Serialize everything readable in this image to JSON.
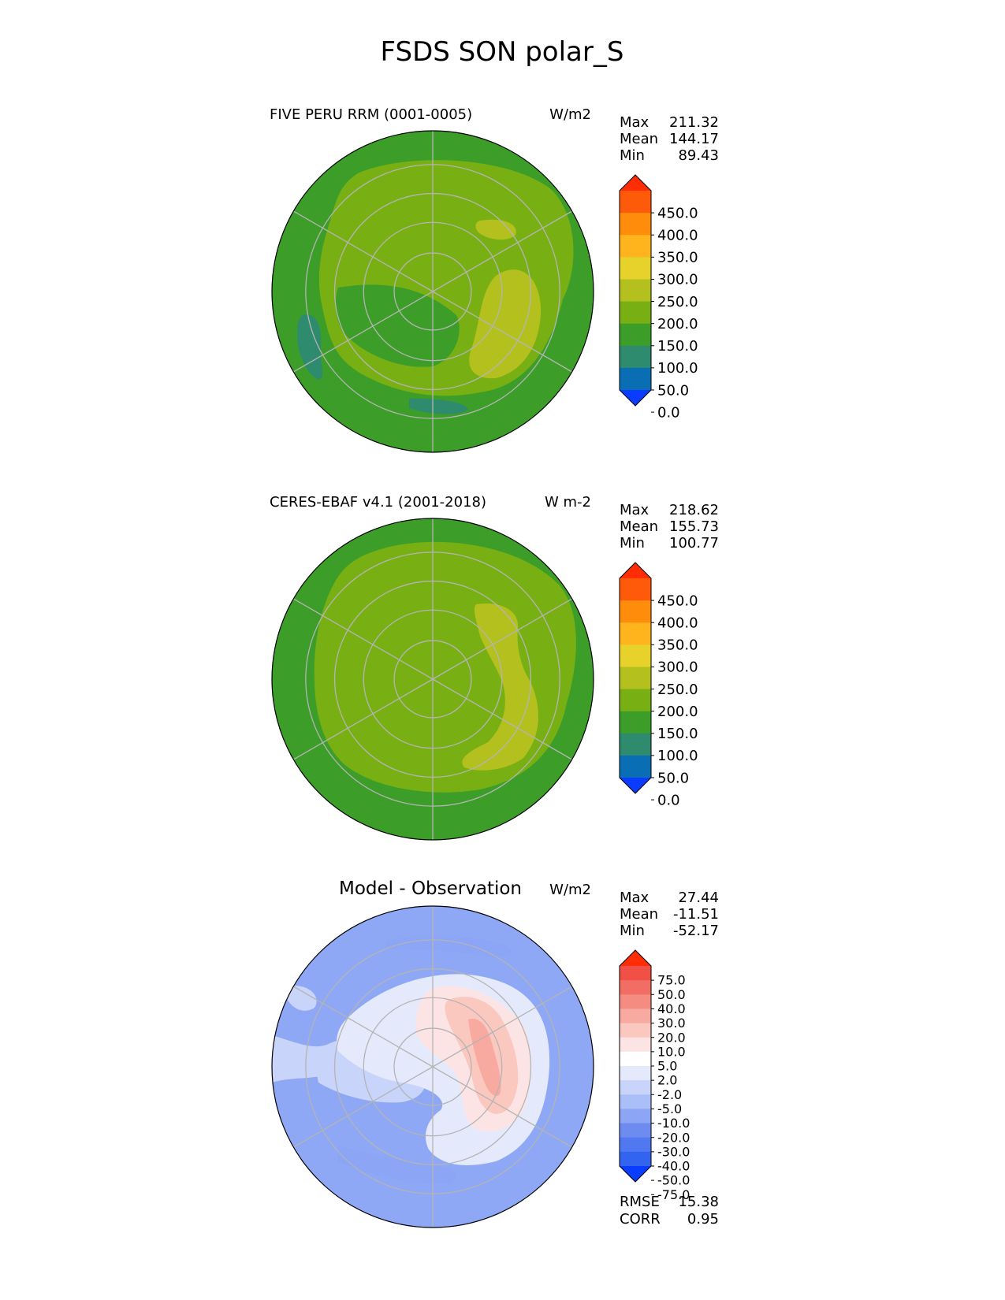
{
  "title": "FSDS SON polar_S",
  "colors": {
    "abs_levels": [
      "#0a3cff",
      "#0a6eb4",
      "#2e8b6e",
      "#3c9e28",
      "#78b014",
      "#b4c01e",
      "#e6d22a",
      "#ffb41e",
      "#ff8c0a",
      "#ff5a0a",
      "#ff2d05"
    ],
    "diff_levels": [
      "#0a3cff",
      "#3264f0",
      "#5078f0",
      "#6e8cf0",
      "#8ca5f5",
      "#aabef8",
      "#c8d4fa",
      "#e4eafc",
      "#ffffff",
      "#fce4e4",
      "#fbc8c0",
      "#f8aaa0",
      "#f58c82",
      "#f26e64",
      "#f05046",
      "#ff2d05"
    ],
    "ocean_abs": "#3c9e28",
    "ocean_diff": "#8fa8f5",
    "grid": "#b4b4b4",
    "coast": "#000000"
  },
  "panels": [
    {
      "id": "test",
      "left_title": "FIVE PERU RRM (0001-0005)",
      "units": "W/m2",
      "stats": {
        "max_label": "Max",
        "max": "211.32",
        "mean_label": "Mean",
        "mean": "144.17",
        "min_label": "Min",
        "min": "89.43"
      },
      "colorbar_ticks": [
        "450.0",
        "400.0",
        "350.0",
        "300.0",
        "250.0",
        "200.0",
        "150.0",
        "100.0",
        "50.0",
        "0.0"
      ]
    },
    {
      "id": "ref",
      "left_title": "CERES-EBAF v4.1 (2001-2018)",
      "units": "W m-2",
      "stats": {
        "max_label": "Max",
        "max": "218.62",
        "mean_label": "Mean",
        "mean": "155.73",
        "min_label": "Min",
        "min": "100.77"
      },
      "colorbar_ticks": [
        "450.0",
        "400.0",
        "350.0",
        "300.0",
        "250.0",
        "200.0",
        "150.0",
        "100.0",
        "50.0",
        "0.0"
      ]
    },
    {
      "id": "diff",
      "center_title": "Model - Observation",
      "units": "W/m2",
      "stats": {
        "max_label": "Max",
        "max": "27.44",
        "mean_label": "Mean",
        "mean": "-11.51",
        "min_label": "Min",
        "min": "-52.17"
      },
      "colorbar_ticks": [
        "75.0",
        "50.0",
        "40.0",
        "30.0",
        "20.0",
        "10.0",
        "5.0",
        "2.0",
        "-2.0",
        "-5.0",
        "-10.0",
        "-20.0",
        "-30.0",
        "-40.0",
        "-50.0",
        "-75.0"
      ],
      "metrics": {
        "rmse_label": "RMSE",
        "rmse": "15.38",
        "corr_label": "CORR",
        "corr": "0.95"
      }
    }
  ],
  "chart_data": [
    {
      "type": "heatmap",
      "projection": "south polar stereographic",
      "title": "FIVE PERU RRM (0001-0005)",
      "units": "W/m2",
      "variable": "FSDS",
      "season": "SON",
      "region": "polar_S",
      "stats": {
        "max": 211.32,
        "mean": 144.17,
        "min": 89.43
      },
      "contour_levels": [
        0,
        50,
        100,
        150,
        200,
        250,
        300,
        350,
        400,
        450
      ]
    },
    {
      "type": "heatmap",
      "projection": "south polar stereographic",
      "title": "CERES-EBAF v4.1 (2001-2018)",
      "units": "W m-2",
      "variable": "FSDS",
      "season": "SON",
      "region": "polar_S",
      "stats": {
        "max": 218.62,
        "mean": 155.73,
        "min": 100.77
      },
      "contour_levels": [
        0,
        50,
        100,
        150,
        200,
        250,
        300,
        350,
        400,
        450
      ]
    },
    {
      "type": "heatmap",
      "projection": "south polar stereographic",
      "title": "Model - Observation",
      "units": "W/m2",
      "stats": {
        "max": 27.44,
        "mean": -11.51,
        "min": -52.17
      },
      "contour_levels": [
        -75,
        -50,
        -40,
        -30,
        -20,
        -10,
        -5,
        -2,
        2,
        5,
        10,
        20,
        30,
        40,
        50,
        75
      ],
      "metrics": {
        "rmse": 15.38,
        "corr": 0.95
      }
    }
  ]
}
